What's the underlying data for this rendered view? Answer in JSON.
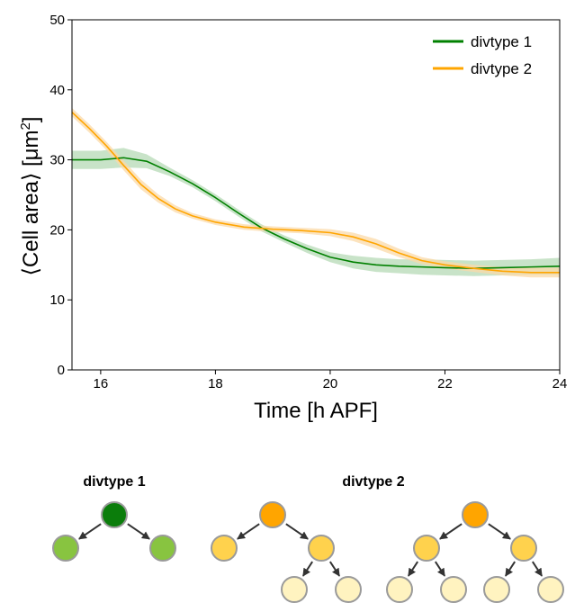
{
  "chart_data": {
    "type": "line",
    "xlabel": "Time [h APF]",
    "ylabel_parts": {
      "open": "⟨Cell area⟩ [μm",
      "sup": "2",
      "close": "]"
    },
    "xlim": [
      15.5,
      24
    ],
    "ylim": [
      0,
      50
    ],
    "xticks": [
      16,
      18,
      20,
      22,
      24
    ],
    "yticks": [
      0,
      10,
      20,
      30,
      40,
      50
    ],
    "legend_position": "top-right",
    "grid": false,
    "series": [
      {
        "name": "divtype 1",
        "color": "#008000",
        "band_color": "#b5d9b5",
        "x": [
          15.5,
          16.0,
          16.4,
          16.8,
          17.2,
          17.6,
          18.0,
          18.4,
          18.8,
          19.2,
          19.6,
          20.0,
          20.4,
          20.8,
          21.2,
          21.6,
          22.0,
          22.5,
          23.0,
          23.5,
          24.0
        ],
        "y": [
          30.0,
          30.0,
          30.3,
          29.8,
          28.3,
          26.6,
          24.6,
          22.4,
          20.3,
          18.7,
          17.3,
          16.1,
          15.4,
          15.0,
          14.8,
          14.7,
          14.6,
          14.5,
          14.6,
          14.7,
          14.8
        ],
        "band": [
          1.3,
          1.3,
          1.4,
          1.0,
          0.6,
          0.5,
          0.5,
          0.5,
          0.5,
          0.5,
          0.6,
          0.7,
          0.9,
          1.0,
          1.0,
          1.1,
          1.1,
          1.1,
          1.1,
          1.1,
          1.2
        ]
      },
      {
        "name": "divtype 2",
        "color": "#ffa500",
        "band_color": "#fbd9a8",
        "x": [
          15.5,
          15.8,
          16.1,
          16.4,
          16.7,
          17.0,
          17.3,
          17.6,
          18.0,
          18.5,
          19.0,
          19.5,
          20.0,
          20.4,
          20.8,
          21.2,
          21.6,
          22.0,
          22.5,
          23.0,
          23.5,
          24.0
        ],
        "y": [
          36.8,
          34.5,
          32.0,
          29.2,
          26.5,
          24.5,
          23.0,
          22.0,
          21.1,
          20.4,
          20.1,
          19.9,
          19.6,
          19.0,
          18.0,
          16.7,
          15.6,
          15.0,
          14.5,
          14.1,
          13.9,
          13.9
        ],
        "band": [
          0.6,
          0.6,
          0.6,
          0.7,
          0.7,
          0.6,
          0.5,
          0.4,
          0.4,
          0.4,
          0.4,
          0.4,
          0.5,
          0.6,
          0.7,
          0.6,
          0.5,
          0.5,
          0.5,
          0.6,
          0.7,
          0.7
        ]
      }
    ]
  },
  "diagram": {
    "tree1": {
      "title": "divtype 1",
      "root_color": "#0b7d0b",
      "child_color": "#88c440"
    },
    "tree2": {
      "title": "divtype 2",
      "root_color": "#ffa500",
      "level1_color": "#ffd24d",
      "level2_color": "#fff3c0"
    },
    "node_stroke": "#9a9a9a",
    "arrow_color": "#333333"
  }
}
